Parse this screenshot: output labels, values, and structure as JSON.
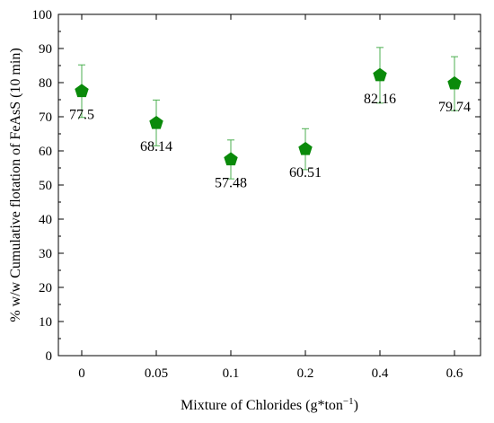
{
  "chart_data": {
    "type": "scatter",
    "title": "",
    "xlabel": "Mixture of Chlorides (g*ton",
    "xlabel_superscript": "−1",
    "xlabel_suffix": ")",
    "ylabel": "% w/w Cumulative flotation of FeAsS (10 min)",
    "categories": [
      "0",
      "0.05",
      "0.1",
      "0.2",
      "0.4",
      "0.6"
    ],
    "series": [
      {
        "values": [
          77.5,
          68.14,
          57.48,
          60.51,
          82.16,
          79.74
        ],
        "error_low": [
          69.8,
          61.5,
          51.8,
          54.5,
          74.0,
          71.8
        ],
        "error_high": [
          85.2,
          74.9,
          63.2,
          66.5,
          90.3,
          87.6
        ],
        "labels": [
          "77.5",
          "68.14",
          "57.48",
          "60.51",
          "82.16",
          "79.74"
        ],
        "marker": "pentagon",
        "color": "#0a8a0a",
        "errorbar_color": "#4caf50"
      }
    ],
    "ylim": [
      0,
      100
    ],
    "yticks": [
      "0",
      "10",
      "20",
      "30",
      "40",
      "50",
      "60",
      "70",
      "80",
      "90",
      "100"
    ],
    "grid": false,
    "legend": "none"
  }
}
